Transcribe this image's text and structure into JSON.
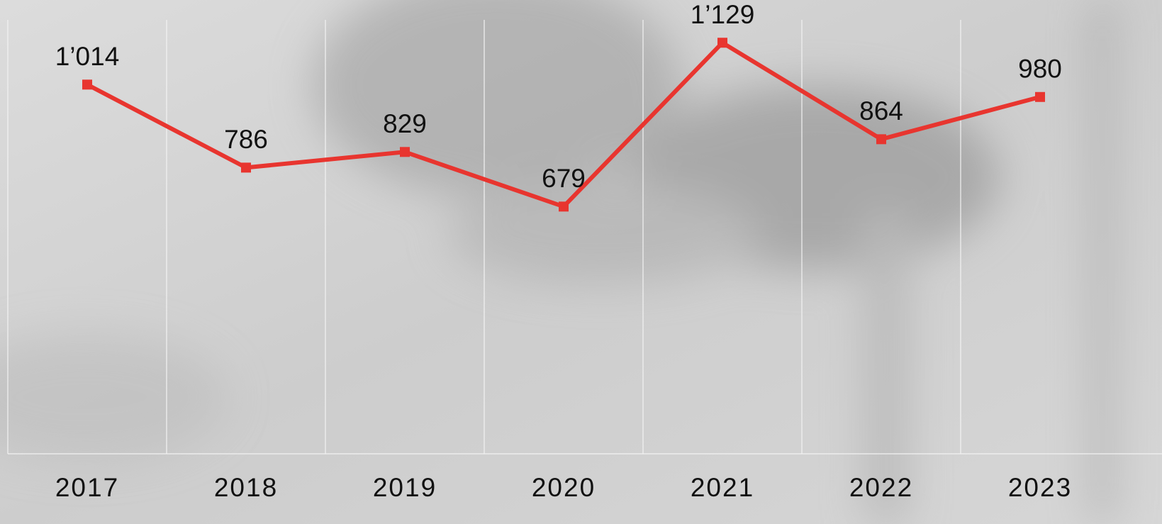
{
  "chart_data": {
    "type": "line",
    "categories": [
      "2017",
      "2018",
      "2019",
      "2020",
      "2021",
      "2022",
      "2023"
    ],
    "values": [
      1014,
      786,
      829,
      679,
      1129,
      864,
      980
    ],
    "value_labels": [
      "1’014",
      "786",
      "829",
      "679",
      "1’129",
      "864",
      "980"
    ],
    "color": "#e8352f",
    "grid": true
  }
}
